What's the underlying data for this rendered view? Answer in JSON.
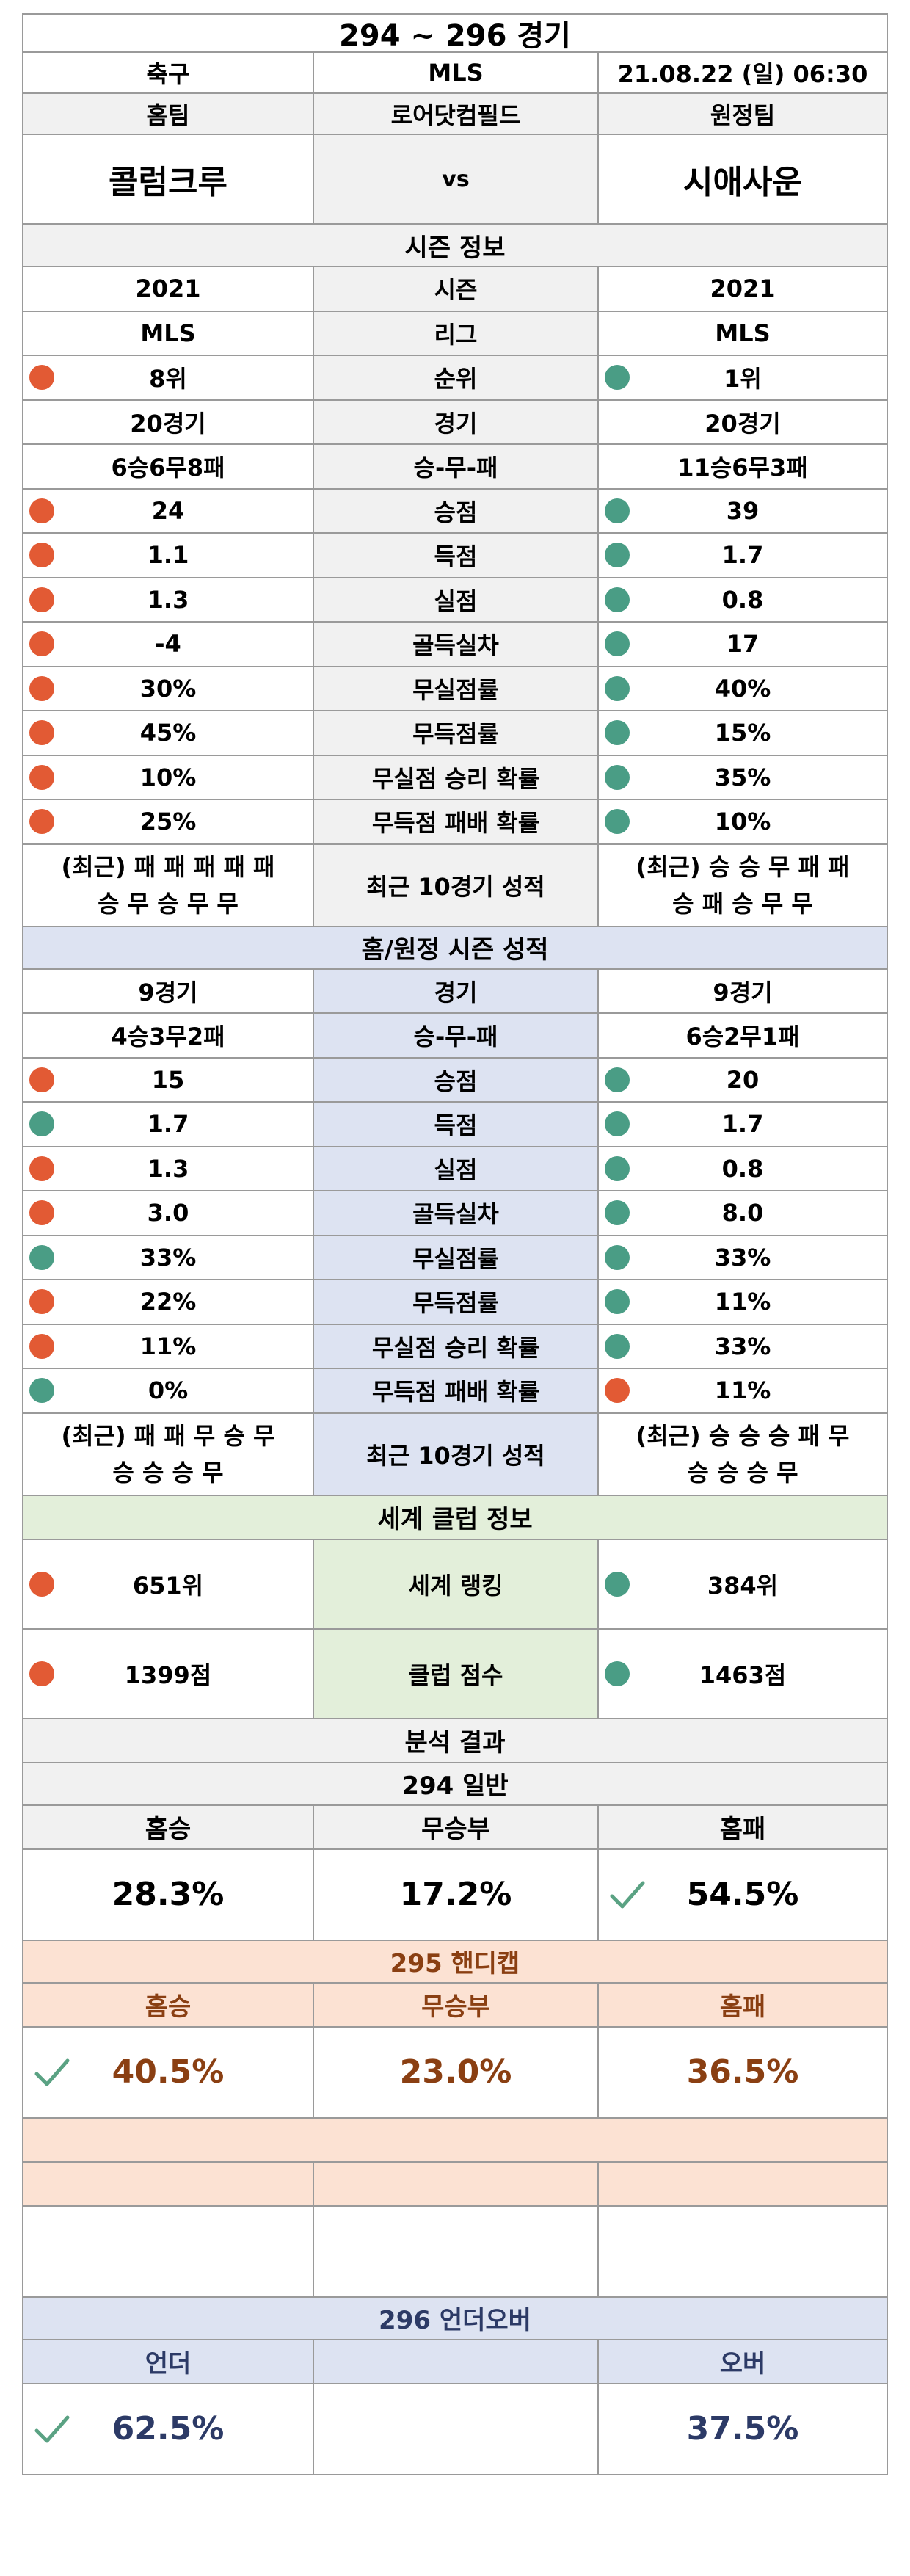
{
  "title": "294 ~ 296 경기",
  "match": {
    "sport": "축구",
    "league": "MLS",
    "datetime": "21.08.22 (일) 06:30"
  },
  "teams": {
    "home_label": "홈팀",
    "venue": "로어닷컴필드",
    "away_label": "원정팀",
    "home": "콜럼크루",
    "vs": "vs",
    "away": "시애사운"
  },
  "season": {
    "header": "시즌 정보",
    "rows": [
      {
        "label": "시즌",
        "home": "2021",
        "away": "2021",
        "home_dot": "",
        "away_dot": ""
      },
      {
        "label": "리그",
        "home": "MLS",
        "away": "MLS",
        "home_dot": "",
        "away_dot": ""
      },
      {
        "label": "순위",
        "home": "8위",
        "away": "1위",
        "home_dot": "red",
        "away_dot": "teal"
      },
      {
        "label": "경기",
        "home": "20경기",
        "away": "20경기",
        "home_dot": "",
        "away_dot": ""
      },
      {
        "label": "승-무-패",
        "home": "6승6무8패",
        "away": "11승6무3패",
        "home_dot": "",
        "away_dot": ""
      },
      {
        "label": "승점",
        "home": "24",
        "away": "39",
        "home_dot": "red",
        "away_dot": "teal"
      },
      {
        "label": "득점",
        "home": "1.1",
        "away": "1.7",
        "home_dot": "red",
        "away_dot": "teal"
      },
      {
        "label": "실점",
        "home": "1.3",
        "away": "0.8",
        "home_dot": "red",
        "away_dot": "teal"
      },
      {
        "label": "골득실차",
        "home": "-4",
        "away": "17",
        "home_dot": "red",
        "away_dot": "teal"
      },
      {
        "label": "무실점률",
        "home": "30%",
        "away": "40%",
        "home_dot": "red",
        "away_dot": "teal"
      },
      {
        "label": "무득점률",
        "home": "45%",
        "away": "15%",
        "home_dot": "red",
        "away_dot": "teal"
      },
      {
        "label": "무실점 승리 확률",
        "home": "10%",
        "away": "35%",
        "home_dot": "red",
        "away_dot": "teal"
      },
      {
        "label": "무득점 패배 확률",
        "home": "25%",
        "away": "10%",
        "home_dot": "red",
        "away_dot": "teal"
      }
    ],
    "recent": {
      "label": "최근 10경기 성적",
      "home": "(최근) 패 패 패 패 패\n승 무 승 무 무",
      "away": "(최근) 승 승 무 패 패\n승 패 승 무 무"
    }
  },
  "homeaway": {
    "header": "홈/원정 시즌 성적",
    "rows": [
      {
        "label": "경기",
        "home": "9경기",
        "away": "9경기",
        "home_dot": "",
        "away_dot": ""
      },
      {
        "label": "승-무-패",
        "home": "4승3무2패",
        "away": "6승2무1패",
        "home_dot": "",
        "away_dot": ""
      },
      {
        "label": "승점",
        "home": "15",
        "away": "20",
        "home_dot": "red",
        "away_dot": "teal"
      },
      {
        "label": "득점",
        "home": "1.7",
        "away": "1.7",
        "home_dot": "teal",
        "away_dot": "teal"
      },
      {
        "label": "실점",
        "home": "1.3",
        "away": "0.8",
        "home_dot": "red",
        "away_dot": "teal"
      },
      {
        "label": "골득실차",
        "home": "3.0",
        "away": "8.0",
        "home_dot": "red",
        "away_dot": "teal"
      },
      {
        "label": "무실점률",
        "home": "33%",
        "away": "33%",
        "home_dot": "teal",
        "away_dot": "teal"
      },
      {
        "label": "무득점률",
        "home": "22%",
        "away": "11%",
        "home_dot": "red",
        "away_dot": "teal"
      },
      {
        "label": "무실점 승리 확률",
        "home": "11%",
        "away": "33%",
        "home_dot": "red",
        "away_dot": "teal"
      },
      {
        "label": "무득점 패배 확률",
        "home": "0%",
        "away": "11%",
        "home_dot": "teal",
        "away_dot": "red"
      }
    ],
    "recent": {
      "label": "최근 10경기 성적",
      "home": "(최근) 패 패 무 승 무\n승 승 승 무",
      "away": "(최근) 승 승 승 패 무\n승 승 승 무"
    }
  },
  "world": {
    "header": "세계 클럽 정보",
    "rows": [
      {
        "label": "세계 랭킹",
        "home": "651위",
        "away": "384위",
        "home_dot": "red",
        "away_dot": "teal"
      },
      {
        "label": "클럽 점수",
        "home": "1399점",
        "away": "1463점",
        "home_dot": "red",
        "away_dot": "teal"
      }
    ]
  },
  "analysis": {
    "header": "분석 결과",
    "general": {
      "header": "294 일반",
      "labels": [
        "홈승",
        "무승부",
        "홈패"
      ],
      "values": [
        "28.3%",
        "17.2%",
        "54.5%"
      ],
      "checked": 2
    },
    "handicap": {
      "header": "295 핸디캡",
      "labels": [
        "홈승",
        "무승부",
        "홈패"
      ],
      "values": [
        "40.5%",
        "23.0%",
        "36.5%"
      ],
      "checked": 0
    },
    "underover": {
      "header": "296 언더오버",
      "labels": [
        "언더",
        "",
        "오버"
      ],
      "values": [
        "62.5%",
        "",
        "37.5%"
      ],
      "checked": 0
    }
  },
  "colors": {
    "red_dot": "#e25a34",
    "teal_dot": "#4a9d85",
    "check": "#5aa283",
    "handicap_text": "#8a3f12",
    "underover_text": "#2c3a66"
  }
}
